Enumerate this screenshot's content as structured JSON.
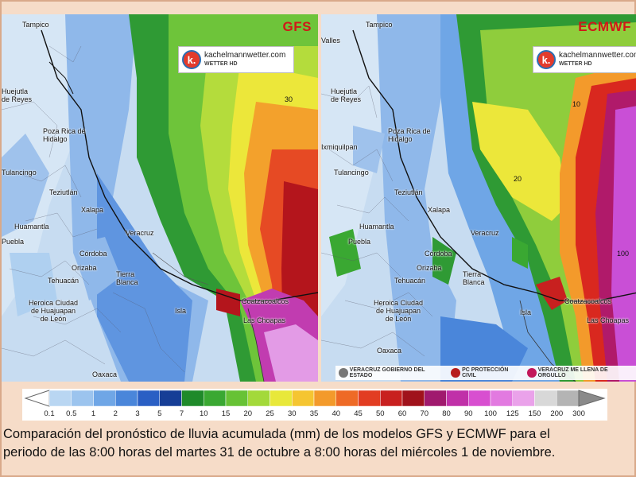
{
  "panels": [
    {
      "model": "GFS",
      "logo": {
        "main": "kachelmannwetter.com",
        "sub": "WETTER HD",
        "letter": "k."
      },
      "contour_labels": [
        "30"
      ],
      "cities": [
        "Tampico",
        "Huejutla de Reyes",
        "Poza Rica de Hidalgo",
        "Tulancingo",
        "Teziutlán",
        "Xalapa",
        "Huamantla",
        "Puebla",
        "Córdoba",
        "Orizaba",
        "Veracruz",
        "Tehuacán",
        "Tierra Blanca",
        "Heroica Ciudad de Huajuapan de León",
        "Isla",
        "Coatzacoalcos",
        "Las Choapas",
        "Oaxaca"
      ]
    },
    {
      "model": "ECMWF",
      "logo": {
        "main": "kachelmannwetter.com",
        "sub": "WETTER HD",
        "letter": "k."
      },
      "contour_labels": [
        "10",
        "20",
        "100"
      ],
      "cities": [
        "Valles",
        "Tampico",
        "Huejutla de Reyes",
        "Ixmiquilpan",
        "Poza Rica de Hidalgo",
        "Tulancingo",
        "Teziutlán",
        "Xalapa",
        "Huamantla",
        "Puebla",
        "Veracruz",
        "Córdoba",
        "Orizaba",
        "Tehuacán",
        "Tierra Blanca",
        "Heroica Ciudad de Huajuapan de León",
        "Isla",
        "Coatzacoalcos",
        "Las Choapas",
        "Oaxaca"
      ],
      "footer_logos": [
        "VERACRUZ GOBIERNO DEL ESTADO",
        "PC PROTECCIÓN CIVIL",
        "VERACRUZ ME LLENA DE ORGULLO"
      ]
    }
  ],
  "colorbar": {
    "ticks": [
      "0.1",
      "0.5",
      "1",
      "2",
      "3",
      "5",
      "7",
      "10",
      "15",
      "20",
      "25",
      "30",
      "35",
      "40",
      "45",
      "50",
      "60",
      "70",
      "80",
      "90",
      "100",
      "125",
      "150",
      "200",
      "300"
    ],
    "colors": [
      "#b9d6f2",
      "#9cc4ee",
      "#6fa6e6",
      "#4a86da",
      "#2a5fc4",
      "#163e96",
      "#1f8a2a",
      "#3aa832",
      "#67c235",
      "#a3d93a",
      "#e8e83a",
      "#f5c531",
      "#f39a2b",
      "#ee6a26",
      "#e23d22",
      "#c8201f",
      "#a0121b",
      "#a01a6e",
      "#c030a8",
      "#d84fd0",
      "#e27ae0",
      "#eaa2ea",
      "#d8d8d8",
      "#b4b4b4"
    ]
  },
  "caption": {
    "line1": "Comparación del pronóstico de lluvia acumulada (mm) de los modelos GFS y ECMWF para el",
    "line2": "periodo de las 8:00 horas del martes 31 de octubre a 8:00 horas del miércoles 1 de noviembre."
  }
}
